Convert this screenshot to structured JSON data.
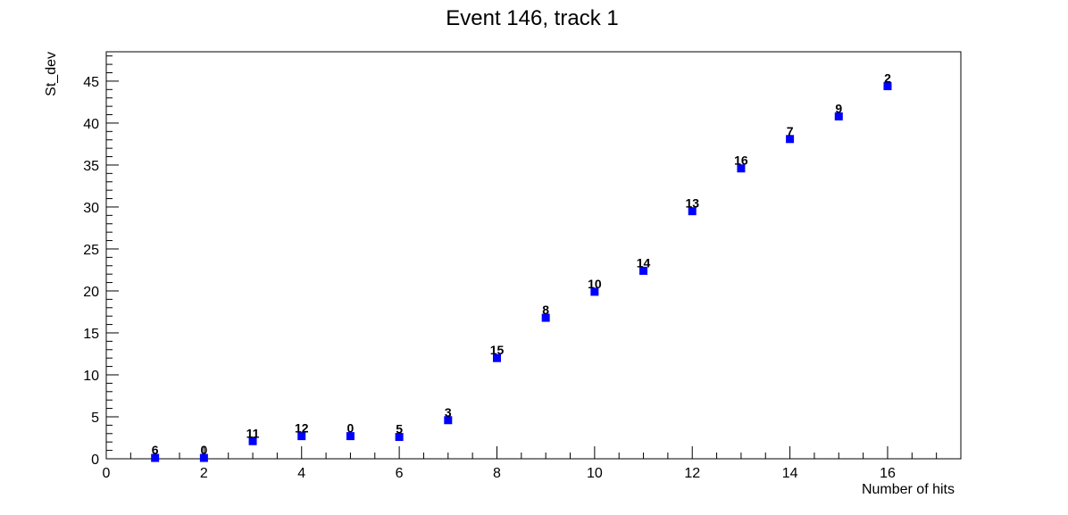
{
  "chart_data": {
    "type": "scatter",
    "title": "Event 146, track 1",
    "xlabel": "Number of hits",
    "ylabel": "St_dev",
    "xlim": [
      0,
      17.5
    ],
    "ylim": [
      0,
      48.5
    ],
    "x_ticks": [
      0,
      2,
      4,
      6,
      8,
      10,
      12,
      14,
      16
    ],
    "x_tick_labels": [
      "0",
      "2",
      "4",
      "6",
      "8",
      "10",
      "12",
      "14",
      "16"
    ],
    "y_ticks": [
      0,
      5,
      10,
      15,
      20,
      25,
      30,
      35,
      40,
      45
    ],
    "y_tick_labels": [
      "0",
      "5",
      "10",
      "15",
      "20",
      "25",
      "30",
      "35",
      "40",
      "45"
    ],
    "grid": false,
    "marker_color": "#0000ff",
    "points": [
      {
        "x": 1,
        "y": 0.1,
        "label": "6"
      },
      {
        "x": 2,
        "y": 0.1,
        "label": "0"
      },
      {
        "x": 3,
        "y": 2.1,
        "label": "11"
      },
      {
        "x": 4,
        "y": 2.7,
        "label": "12"
      },
      {
        "x": 5,
        "y": 2.7,
        "label": "0"
      },
      {
        "x": 6,
        "y": 2.6,
        "label": "5"
      },
      {
        "x": 7,
        "y": 4.6,
        "label": "3"
      },
      {
        "x": 8,
        "y": 12.0,
        "label": "15"
      },
      {
        "x": 9,
        "y": 16.8,
        "label": "8"
      },
      {
        "x": 10,
        "y": 19.9,
        "label": "10"
      },
      {
        "x": 11,
        "y": 22.4,
        "label": "14"
      },
      {
        "x": 12,
        "y": 29.5,
        "label": "13"
      },
      {
        "x": 13,
        "y": 34.6,
        "label": "16"
      },
      {
        "x": 14,
        "y": 38.1,
        "label": "7"
      },
      {
        "x": 15,
        "y": 40.8,
        "label": "9"
      },
      {
        "x": 16,
        "y": 44.4,
        "label": "2"
      }
    ]
  }
}
